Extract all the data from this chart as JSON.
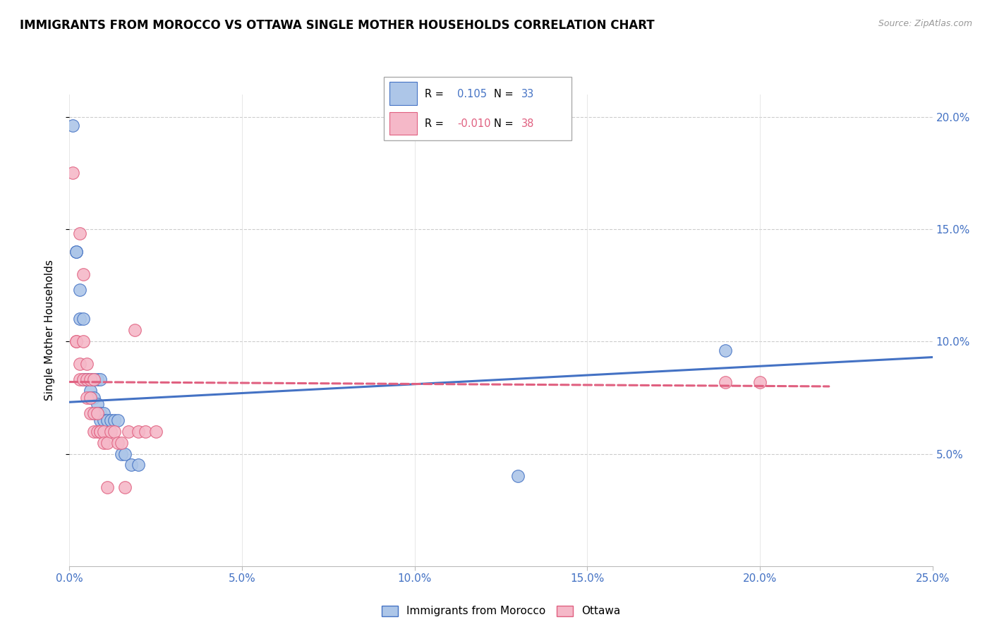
{
  "title": "IMMIGRANTS FROM MOROCCO VS OTTAWA SINGLE MOTHER HOUSEHOLDS CORRELATION CHART",
  "source": "Source: ZipAtlas.com",
  "ylabel": "Single Mother Households",
  "xlim": [
    0.0,
    0.25
  ],
  "ylim": [
    0.0,
    0.21
  ],
  "xticks": [
    0.0,
    0.05,
    0.1,
    0.15,
    0.2,
    0.25
  ],
  "xtick_labels": [
    "0.0%",
    "5.0%",
    "10.0%",
    "15.0%",
    "20.0%",
    "25.0%"
  ],
  "yticks": [
    0.05,
    0.1,
    0.15,
    0.2
  ],
  "ytick_labels": [
    "5.0%",
    "10.0%",
    "15.0%",
    "20.0%"
  ],
  "color_blue": "#adc6e8",
  "color_pink": "#f5b8c8",
  "line_color_blue": "#4472c4",
  "line_color_pink": "#e06080",
  "blue_trend_x": [
    0.0,
    0.25
  ],
  "blue_trend_y": [
    0.073,
    0.093
  ],
  "pink_trend_x": [
    0.0,
    0.22
  ],
  "pink_trend_y": [
    0.082,
    0.08
  ],
  "scatter_blue": [
    [
      0.001,
      0.196
    ],
    [
      0.002,
      0.14
    ],
    [
      0.002,
      0.14
    ],
    [
      0.003,
      0.123
    ],
    [
      0.003,
      0.11
    ],
    [
      0.004,
      0.11
    ],
    [
      0.004,
      0.083
    ],
    [
      0.005,
      0.083
    ],
    [
      0.005,
      0.083
    ],
    [
      0.006,
      0.083
    ],
    [
      0.006,
      0.078
    ],
    [
      0.006,
      0.075
    ],
    [
      0.007,
      0.083
    ],
    [
      0.007,
      0.075
    ],
    [
      0.007,
      0.068
    ],
    [
      0.008,
      0.083
    ],
    [
      0.008,
      0.072
    ],
    [
      0.008,
      0.068
    ],
    [
      0.009,
      0.083
    ],
    [
      0.009,
      0.068
    ],
    [
      0.009,
      0.065
    ],
    [
      0.01,
      0.068
    ],
    [
      0.01,
      0.065
    ],
    [
      0.011,
      0.065
    ],
    [
      0.012,
      0.065
    ],
    [
      0.013,
      0.065
    ],
    [
      0.014,
      0.065
    ],
    [
      0.015,
      0.05
    ],
    [
      0.016,
      0.05
    ],
    [
      0.018,
      0.045
    ],
    [
      0.02,
      0.045
    ],
    [
      0.19,
      0.096
    ],
    [
      0.13,
      0.04
    ]
  ],
  "scatter_pink": [
    [
      0.001,
      0.175
    ],
    [
      0.002,
      0.1
    ],
    [
      0.002,
      0.1
    ],
    [
      0.003,
      0.148
    ],
    [
      0.003,
      0.09
    ],
    [
      0.003,
      0.083
    ],
    [
      0.004,
      0.13
    ],
    [
      0.004,
      0.1
    ],
    [
      0.004,
      0.083
    ],
    [
      0.005,
      0.09
    ],
    [
      0.005,
      0.083
    ],
    [
      0.005,
      0.075
    ],
    [
      0.006,
      0.083
    ],
    [
      0.006,
      0.075
    ],
    [
      0.006,
      0.068
    ],
    [
      0.007,
      0.083
    ],
    [
      0.007,
      0.068
    ],
    [
      0.007,
      0.06
    ],
    [
      0.008,
      0.068
    ],
    [
      0.008,
      0.06
    ],
    [
      0.009,
      0.06
    ],
    [
      0.009,
      0.06
    ],
    [
      0.01,
      0.06
    ],
    [
      0.01,
      0.055
    ],
    [
      0.011,
      0.055
    ],
    [
      0.011,
      0.035
    ],
    [
      0.012,
      0.06
    ],
    [
      0.013,
      0.06
    ],
    [
      0.014,
      0.055
    ],
    [
      0.015,
      0.055
    ],
    [
      0.016,
      0.035
    ],
    [
      0.017,
      0.06
    ],
    [
      0.019,
      0.105
    ],
    [
      0.02,
      0.06
    ],
    [
      0.022,
      0.06
    ],
    [
      0.025,
      0.06
    ],
    [
      0.19,
      0.082
    ],
    [
      0.2,
      0.082
    ]
  ]
}
